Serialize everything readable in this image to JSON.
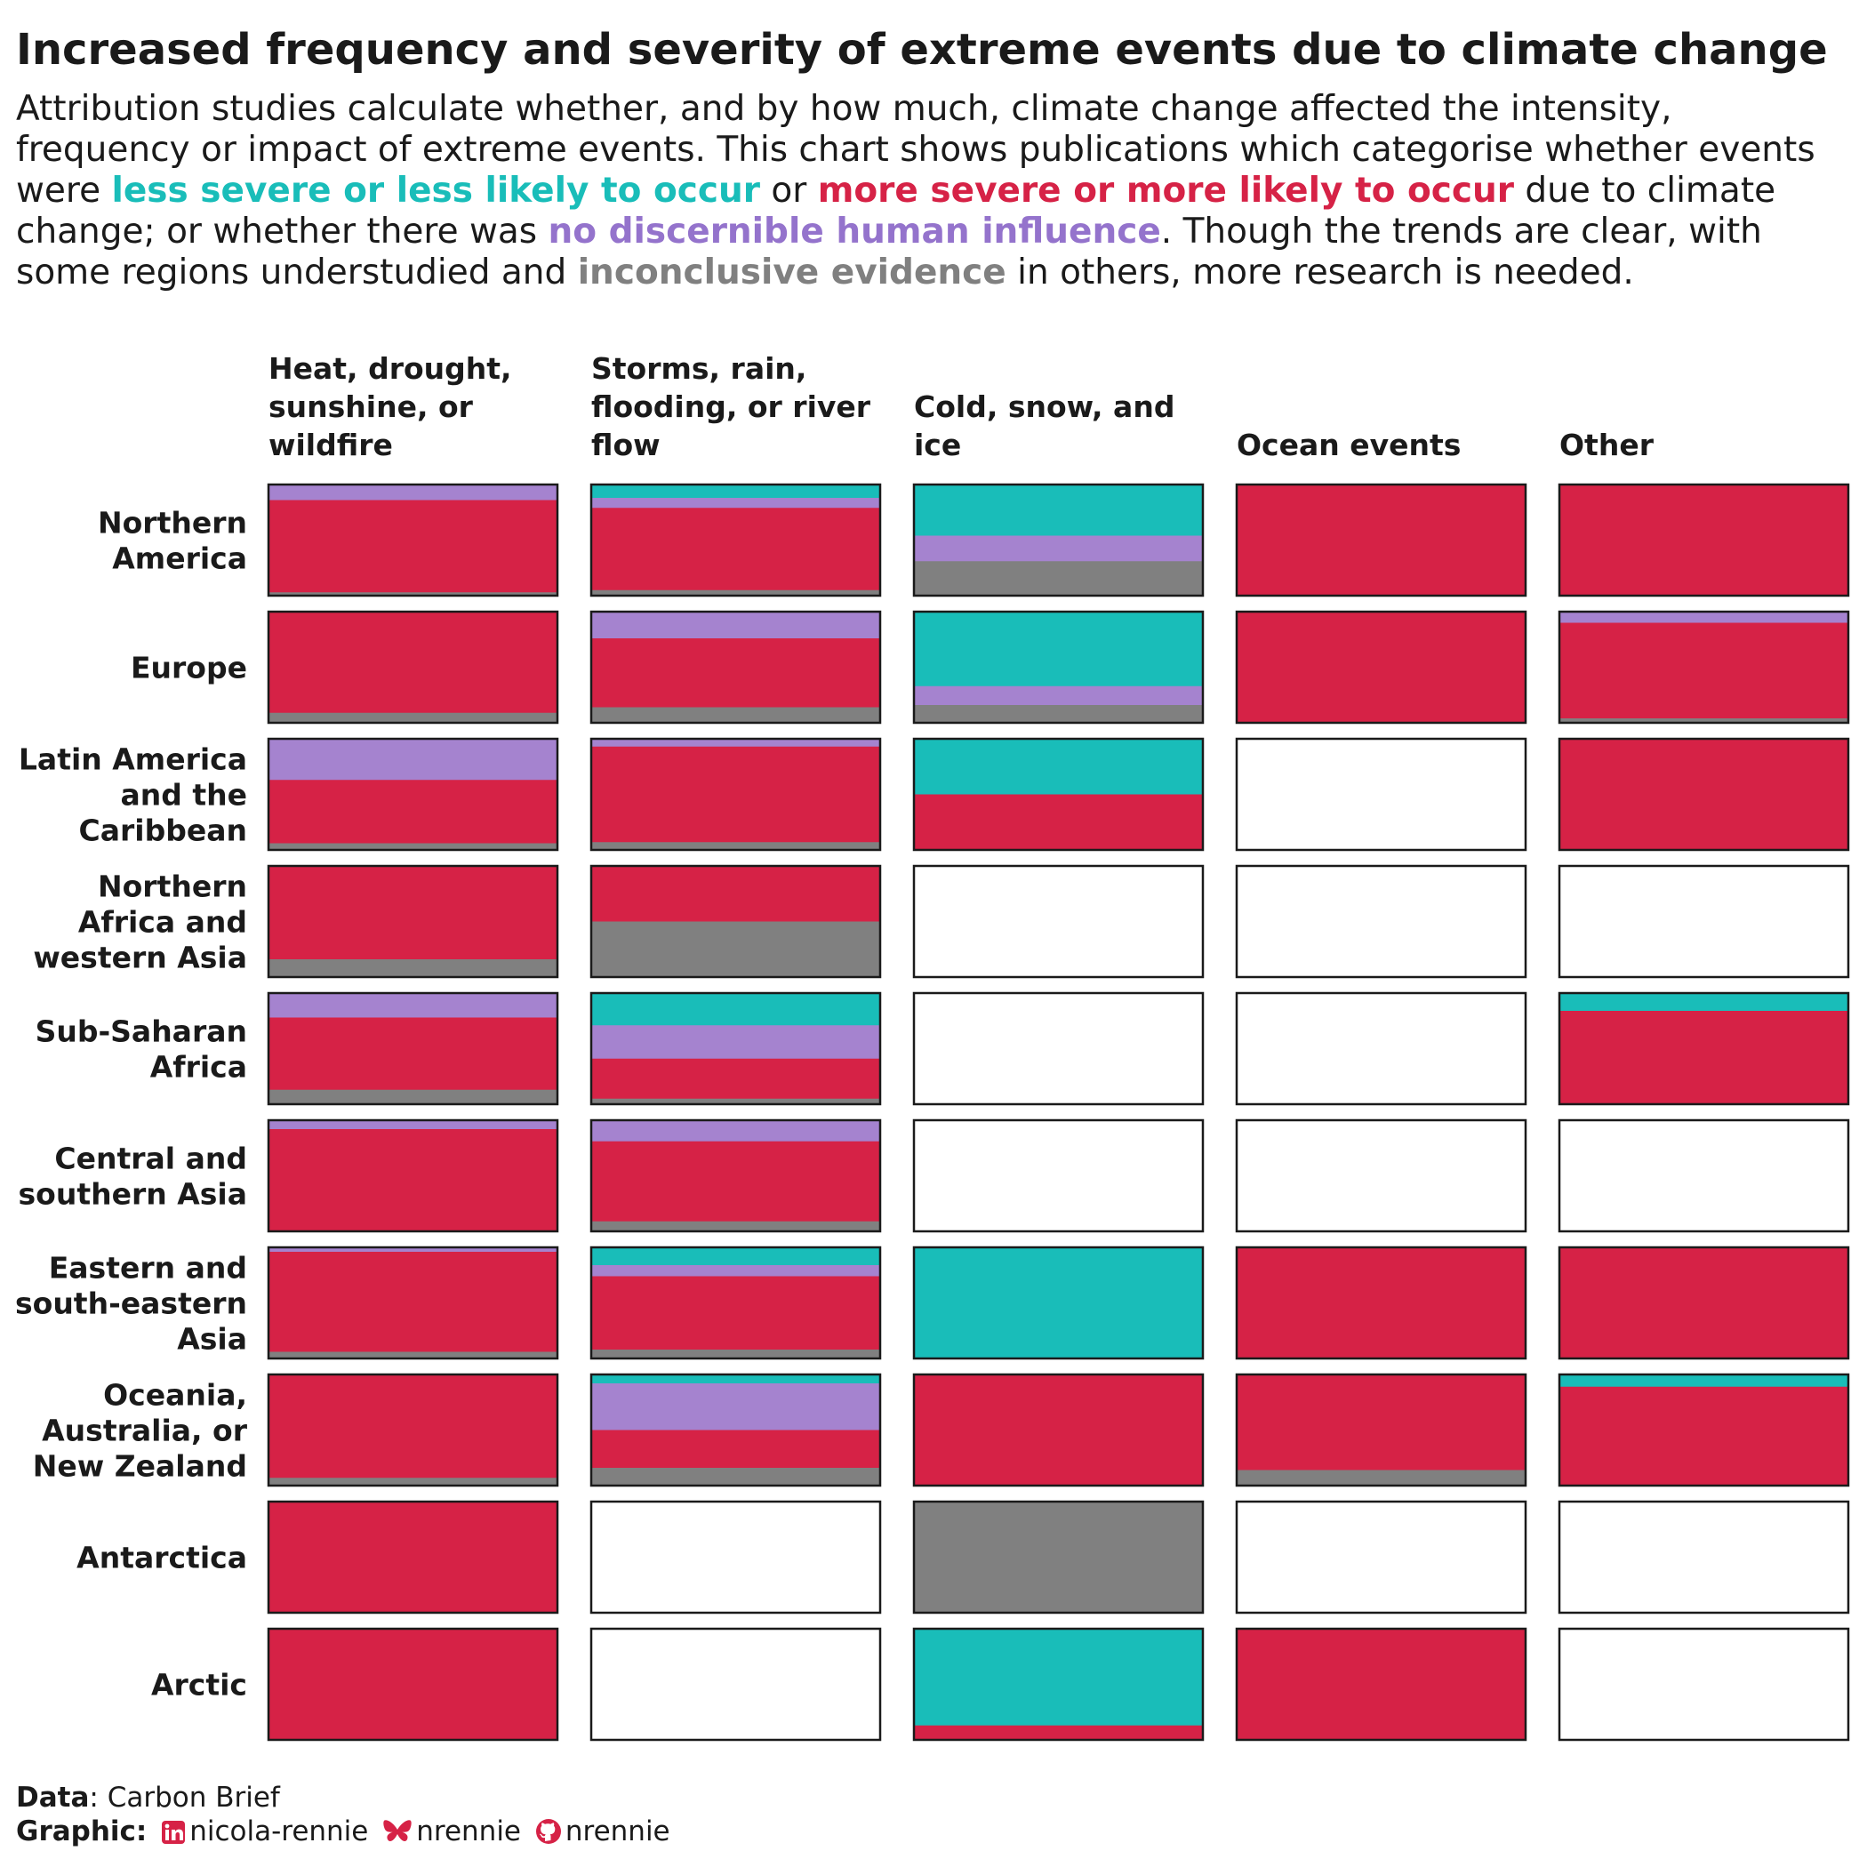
{
  "title": "Increased frequency and severity of extreme events due to climate change",
  "subtitle": {
    "parts": [
      {
        "text": "Attribution studies calculate whether, and by how much, climate change affected the intensity, frequency or impact of extreme events. This chart shows publications which categorise whether events were ",
        "color": ""
      },
      {
        "text": "less severe or less likely to occur",
        "color": "#19BDB9"
      },
      {
        "text": " or ",
        "color": ""
      },
      {
        "text": "more severe or more likely to occur",
        "color": "#D62246"
      },
      {
        "text": " due to climate change; or whether there was ",
        "color": ""
      },
      {
        "text": "no discernible human influence",
        "color": "#9473CC"
      },
      {
        "text": ". Though the trends are clear, with some regions understudied and ",
        "color": ""
      },
      {
        "text": "inconclusive evidence",
        "color": "#808080"
      },
      {
        "text": " in others, more research is needed.",
        "color": ""
      }
    ]
  },
  "colors": {
    "less": "#19BDB9",
    "no_influence": "#A583CF",
    "more": "#D62246",
    "inconclusive": "#808080",
    "empty": "#FFFFFF"
  },
  "chart_data": {
    "type": "heatmap",
    "subtype": "stacked-proportion-grid",
    "categories_order": [
      "less",
      "no_influence",
      "more",
      "inconclusive"
    ],
    "columns": [
      {
        "label": "Heat, drought, sunshine, or wildfire",
        "lines": [
          "Heat, drought,",
          "sunshine, or",
          "wildfire"
        ]
      },
      {
        "label": "Storms, rain, flooding, or river flow",
        "lines": [
          "Storms, rain,",
          "flooding, or river",
          "flow"
        ]
      },
      {
        "label": "Cold, snow, and ice",
        "lines": [
          "Cold, snow, and",
          "ice"
        ]
      },
      {
        "label": "Ocean events",
        "lines": [
          "Ocean events"
        ]
      },
      {
        "label": "Other",
        "lines": [
          "Other"
        ]
      }
    ],
    "rows": [
      {
        "label": "Northern America",
        "lines": [
          "Northern",
          "America"
        ],
        "cells": [
          [
            0,
            0.14,
            0.83,
            0.03
          ],
          [
            0.12,
            0.09,
            0.74,
            0.05
          ],
          [
            0.46,
            0.23,
            0,
            0.31
          ],
          [
            0,
            0,
            1,
            0
          ],
          [
            0,
            0,
            1,
            0
          ]
        ]
      },
      {
        "label": "Europe",
        "lines": [
          "Europe"
        ],
        "cells": [
          [
            0,
            0,
            0.91,
            0.09
          ],
          [
            0,
            0.24,
            0.62,
            0.14
          ],
          [
            0.67,
            0.17,
            0,
            0.16
          ],
          [
            0,
            0,
            1,
            0
          ],
          [
            0,
            0.1,
            0.86,
            0.04
          ]
        ]
      },
      {
        "label": "Latin America and the Caribbean",
        "lines": [
          "Latin America",
          "and the",
          "Caribbean"
        ],
        "cells": [
          [
            0,
            0.37,
            0.57,
            0.06
          ],
          [
            0,
            0.07,
            0.86,
            0.07
          ],
          [
            0.5,
            0,
            0.5,
            0
          ],
          null,
          [
            0,
            0,
            1,
            0
          ]
        ]
      },
      {
        "label": "Northern Africa and western Asia",
        "lines": [
          "Northern",
          "Africa and",
          "western Asia"
        ],
        "cells": [
          [
            0,
            0,
            0.84,
            0.16
          ],
          [
            0,
            0,
            0.5,
            0.5
          ],
          null,
          null,
          null
        ]
      },
      {
        "label": "Sub-Saharan Africa",
        "lines": [
          "Sub-Saharan",
          "Africa"
        ],
        "cells": [
          [
            0,
            0.22,
            0.65,
            0.13
          ],
          [
            0.29,
            0.3,
            0.36,
            0.05
          ],
          null,
          null,
          [
            0.16,
            0,
            0.84,
            0
          ]
        ]
      },
      {
        "label": "Central and southern Asia",
        "lines": [
          "Central and",
          "southern Asia"
        ],
        "cells": [
          [
            0,
            0.08,
            0.92,
            0
          ],
          [
            0,
            0.19,
            0.72,
            0.09
          ],
          null,
          null,
          null
        ]
      },
      {
        "label": "Eastern and south-eastern Asia",
        "lines": [
          "Eastern and",
          "south-eastern",
          "Asia"
        ],
        "cells": [
          [
            0,
            0.04,
            0.9,
            0.06
          ],
          [
            0.16,
            0.1,
            0.66,
            0.08
          ],
          [
            1,
            0,
            0,
            0
          ],
          [
            0,
            0,
            1,
            0
          ],
          [
            0,
            0,
            1,
            0
          ]
        ]
      },
      {
        "label": "Oceania, Australia, or New Zealand",
        "lines": [
          "Oceania,",
          "Australia, or",
          "New Zealand"
        ],
        "cells": [
          [
            0,
            0,
            0.93,
            0.07
          ],
          [
            0.08,
            0.42,
            0.34,
            0.16
          ],
          [
            0,
            0,
            1,
            0
          ],
          [
            0,
            0,
            0.86,
            0.14
          ],
          [
            0.11,
            0,
            0.89,
            0
          ]
        ]
      },
      {
        "label": "Antarctica",
        "lines": [
          "Antarctica"
        ],
        "cells": [
          [
            0,
            0,
            1,
            0
          ],
          null,
          [
            0,
            0,
            0,
            1
          ],
          null,
          null
        ]
      },
      {
        "label": "Arctic",
        "lines": [
          "Arctic"
        ],
        "cells": [
          [
            0,
            0,
            1,
            0
          ],
          null,
          [
            0.87,
            0,
            0.13,
            0
          ],
          [
            0,
            0,
            1,
            0
          ],
          null
        ]
      }
    ]
  },
  "caption": {
    "data_label": "Data",
    "data_value": ": Carbon Brief",
    "graphic_label": "Graphic",
    "linkedin_icon": "linkedin-icon",
    "linkedin": "nicola-rennie",
    "bluesky_icon": "bluesky-butterfly-icon",
    "bluesky": "nrennie",
    "github_icon": "github-icon",
    "github": "nrennie"
  }
}
